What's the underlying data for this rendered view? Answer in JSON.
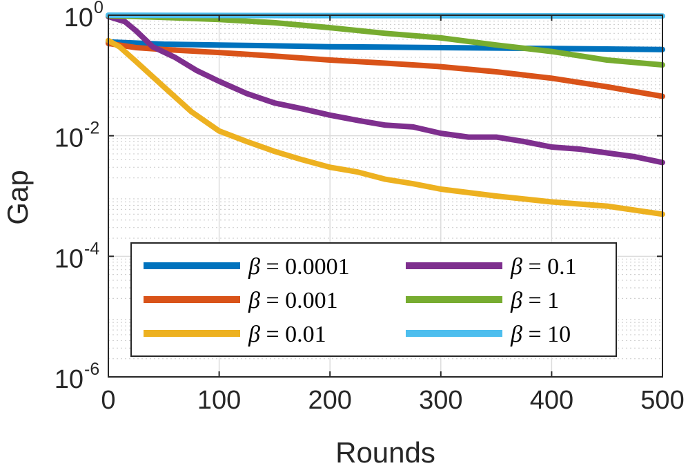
{
  "chart_data": {
    "type": "line",
    "title": "",
    "xlabel": "Rounds",
    "ylabel": "Gap",
    "xlim": [
      0,
      500
    ],
    "ylim": [
      1e-06,
      1
    ],
    "yscale": "log",
    "grid": true,
    "minor_grid": true,
    "legend_location": "bottom-left",
    "legend_columns": 2,
    "xticks": [
      0,
      100,
      200,
      300,
      400,
      500
    ],
    "xtick_labels": [
      "0",
      "100",
      "200",
      "300",
      "400",
      "500"
    ],
    "yticks": [
      1e-06,
      0.0001,
      0.01,
      1
    ],
    "ytick_labels": [
      {
        "base": "10",
        "exp": "-6"
      },
      {
        "base": "10",
        "exp": "-4"
      },
      {
        "base": "10",
        "exp": "-2"
      },
      {
        "base": "10",
        "exp": "0"
      }
    ],
    "series": [
      {
        "name": "β = 0.0001",
        "beta": "β",
        "value_text": "= 0.0001",
        "color": "#0072BD",
        "x": [
          0,
          50,
          100,
          150,
          200,
          250,
          300,
          350,
          400,
          450,
          500
        ],
        "y": [
          0.36,
          0.33,
          0.32,
          0.31,
          0.3,
          0.295,
          0.29,
          0.285,
          0.28,
          0.275,
          0.27
        ]
      },
      {
        "name": "β = 0.001",
        "beta": "β",
        "value_text": "= 0.001",
        "color": "#D95319",
        "x": [
          0,
          25,
          50,
          100,
          150,
          200,
          250,
          300,
          350,
          400,
          450,
          500
        ],
        "y": [
          0.34,
          0.29,
          0.27,
          0.24,
          0.21,
          0.18,
          0.16,
          0.14,
          0.115,
          0.09,
          0.065,
          0.045
        ]
      },
      {
        "name": "β = 0.01",
        "beta": "β",
        "value_text": "= 0.01",
        "color": "#EDB120",
        "x": [
          0,
          10,
          25,
          50,
          75,
          100,
          125,
          150,
          175,
          200,
          225,
          250,
          275,
          300,
          350,
          400,
          450,
          500
        ],
        "y": [
          0.38,
          0.3,
          0.17,
          0.065,
          0.025,
          0.012,
          0.008,
          0.0055,
          0.004,
          0.003,
          0.0025,
          0.0019,
          0.0016,
          0.0013,
          0.001,
          0.0008,
          0.00068,
          0.0005
        ]
      },
      {
        "name": "β = 0.1",
        "beta": "β",
        "value_text": "= 0.1",
        "color": "#7E2F8E",
        "x": [
          0,
          15,
          25,
          40,
          60,
          80,
          100,
          125,
          150,
          175,
          200,
          225,
          250,
          275,
          300,
          325,
          350,
          375,
          400,
          425,
          450,
          475,
          500
        ],
        "y": [
          0.95,
          0.78,
          0.55,
          0.3,
          0.2,
          0.12,
          0.08,
          0.05,
          0.035,
          0.028,
          0.022,
          0.018,
          0.015,
          0.014,
          0.011,
          0.0095,
          0.0095,
          0.008,
          0.0065,
          0.006,
          0.0052,
          0.0045,
          0.0036
        ]
      },
      {
        "name": "β = 1",
        "beta": "β",
        "value_text": "= 1",
        "color": "#77AC30",
        "x": [
          0,
          50,
          100,
          150,
          200,
          250,
          300,
          350,
          400,
          450,
          500
        ],
        "y": [
          0.98,
          0.92,
          0.85,
          0.75,
          0.62,
          0.5,
          0.42,
          0.32,
          0.25,
          0.18,
          0.15
        ]
      },
      {
        "name": "β = 10",
        "beta": "β",
        "value_text": "= 10",
        "color": "#4DBEEE",
        "x": [
          0,
          100,
          200,
          300,
          400,
          500
        ],
        "y": [
          1.0,
          0.99,
          0.985,
          0.98,
          0.975,
          0.97
        ]
      }
    ]
  }
}
